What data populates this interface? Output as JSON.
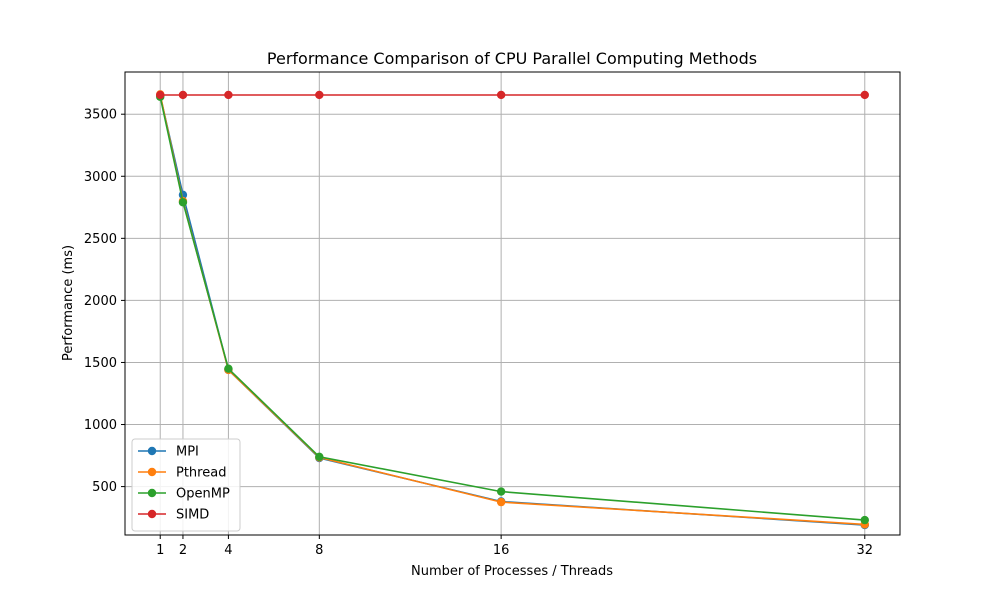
{
  "chart_data": {
    "type": "line",
    "title": "Performance Comparison of CPU Parallel Computing Methods",
    "xlabel": "Number of Processes / Threads",
    "ylabel": "Performance (ms)",
    "x": [
      1,
      2,
      4,
      8,
      16,
      32
    ],
    "x_ticks": [
      1,
      2,
      4,
      8,
      16,
      32
    ],
    "xlim": [
      -0.55,
      33.55
    ],
    "ylim": [
      110,
      3840
    ],
    "y_ticks": [
      500,
      1000,
      1500,
      2000,
      2500,
      3000,
      3500
    ],
    "grid": true,
    "legend_position": "lower-left",
    "series": [
      {
        "name": "MPI",
        "color": "#1f77b4",
        "values": [
          3650,
          2850,
          1440,
          730,
          380,
          190
        ]
      },
      {
        "name": "Pthread",
        "color": "#ff7f0e",
        "values": [
          3660,
          2800,
          1440,
          735,
          375,
          195
        ]
      },
      {
        "name": "OpenMP",
        "color": "#2ca02c",
        "values": [
          3640,
          2790,
          1450,
          740,
          460,
          230
        ]
      },
      {
        "name": "SIMD",
        "color": "#d62728",
        "values": [
          3655,
          3655,
          3655,
          3655,
          3655,
          3655
        ]
      }
    ]
  }
}
